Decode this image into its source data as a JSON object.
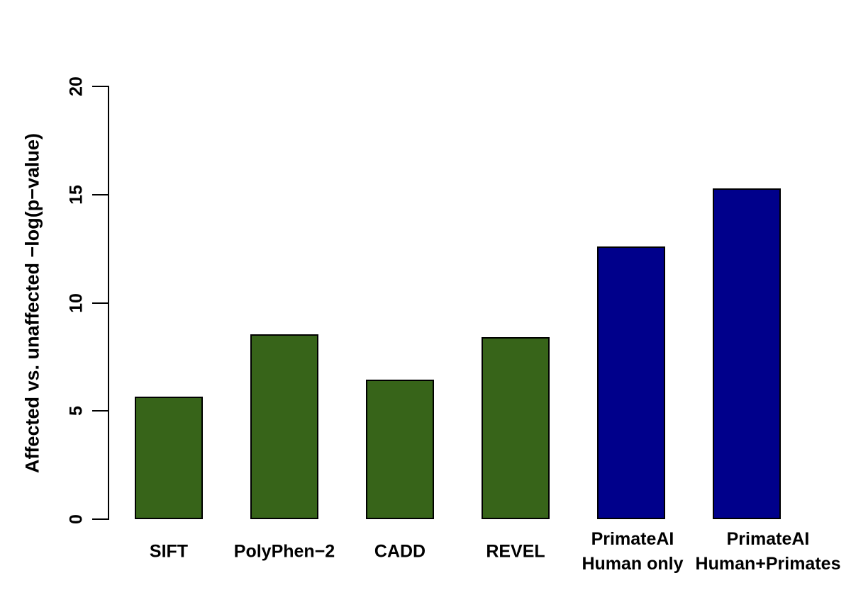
{
  "figure": {
    "background_color": "#ffffff",
    "axis_color": "#000000",
    "text_color": "#000000"
  },
  "chart_data": {
    "type": "bar",
    "title": "",
    "xlabel": "",
    "ylabel": "Affected vs. unaffected −log(p−value)",
    "categories": [
      "SIFT",
      "PolyPhen−2",
      "CADD",
      "REVEL",
      "PrimateAI\nHuman only",
      "PrimateAI\nHuman+Primates"
    ],
    "values": [
      5.65,
      8.55,
      6.45,
      8.4,
      12.6,
      15.3
    ],
    "bar_colors": [
      "#376419",
      "#376419",
      "#376419",
      "#376419",
      "#00008B",
      "#00008B"
    ],
    "bar_border_color": "#000000",
    "ylim": [
      0,
      20
    ],
    "yticks": [
      0,
      5,
      10,
      15,
      20
    ],
    "grid": false,
    "legend_position": "none"
  }
}
